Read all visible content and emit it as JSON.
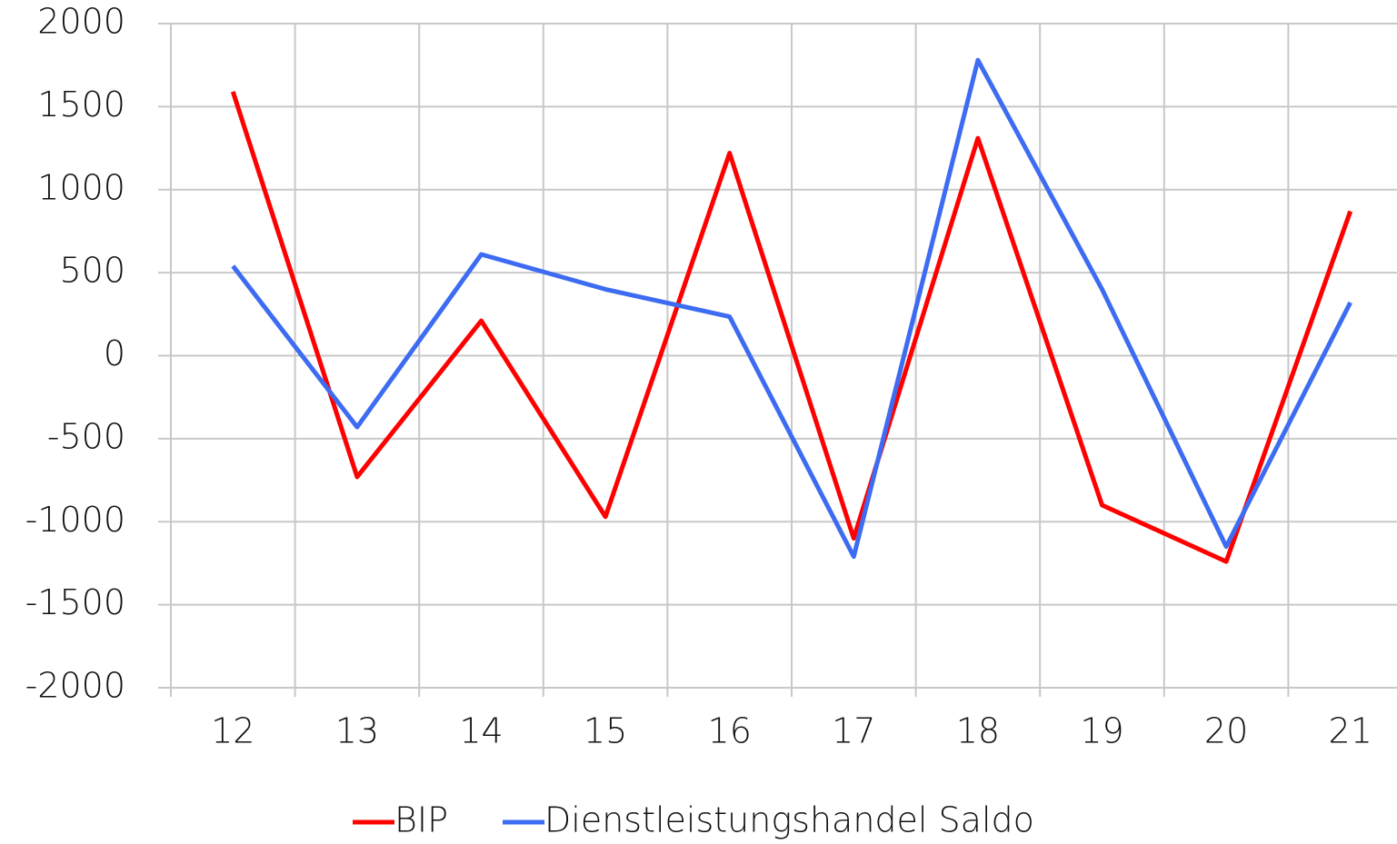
{
  "chart_data": {
    "type": "line",
    "categories": [
      "12",
      "13",
      "14",
      "15",
      "16",
      "17",
      "18",
      "19",
      "20",
      "21"
    ],
    "series": [
      {
        "name": "BIP",
        "color": "#ff0000",
        "values": [
          1590,
          -730,
          210,
          -970,
          1220,
          -1100,
          1310,
          -900,
          -1240,
          870
        ]
      },
      {
        "name": "Dienstleistungshandel Saldo",
        "color": "#3d6cf2",
        "values": [
          540,
          -430,
          610,
          400,
          235,
          -1210,
          1780,
          400,
          -1150,
          320
        ]
      }
    ],
    "ylim": [
      -2000,
      2000
    ],
    "yticks": [
      -2000,
      -1500,
      -1000,
      -500,
      0,
      500,
      1000,
      1500,
      2000
    ],
    "grid": true,
    "legend": "bottom"
  }
}
